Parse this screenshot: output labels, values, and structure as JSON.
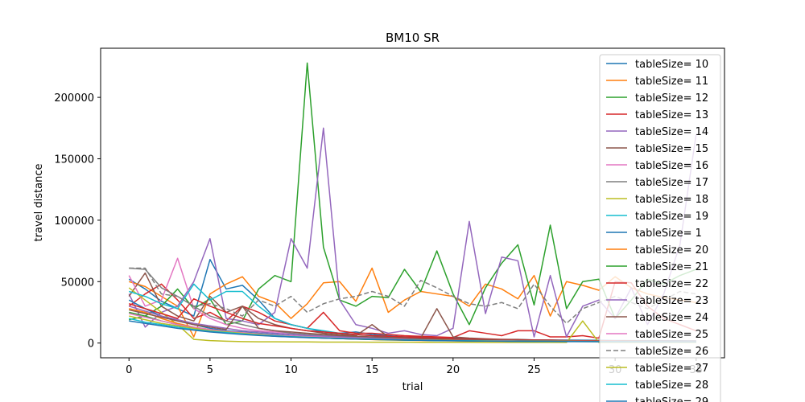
{
  "chart_data": {
    "type": "line",
    "title": "BM10  SR",
    "xlabel": "trial",
    "ylabel": "travel distance",
    "xlim": [
      -1.75,
      36.75
    ],
    "ylim": [
      -12000,
      240000
    ],
    "xticks": [
      0,
      5,
      10,
      15,
      20,
      25,
      30,
      35
    ],
    "yticks": [
      0,
      50000,
      100000,
      150000,
      200000
    ],
    "ytick_labels": [
      "0",
      "50000",
      "100000",
      "150000",
      "200000"
    ],
    "xtick_labels": [
      "0",
      "5",
      "10",
      "15",
      "20",
      "25",
      "30",
      "35"
    ],
    "grid": false,
    "legend_position": "top-right",
    "series": [
      {
        "name": "tableSize= 10",
        "color": "#1f77b4",
        "values": [
          52000,
          44000,
          34000,
          28000,
          22000,
          68000,
          44000,
          47000,
          35000,
          20000,
          15000,
          12000,
          9000,
          8000,
          9000,
          7000,
          6000,
          5000,
          5000,
          4000,
          4000,
          3500,
          3000,
          3000,
          2800,
          2600,
          2500,
          2400,
          2300,
          2200,
          2100,
          2000,
          2000,
          1900,
          1900,
          1800
        ]
      },
      {
        "name": "tableSize= 11",
        "color": "#ff7f0e",
        "values": [
          50000,
          46000,
          38000,
          30000,
          5000,
          40000,
          48000,
          54000,
          38000,
          33000,
          20000,
          32000,
          49000,
          50000,
          34000,
          61000,
          25000,
          35000,
          42000,
          40000,
          38000,
          30000,
          48000,
          44000,
          36000,
          55000,
          22000,
          50000,
          47000,
          43000,
          54000,
          45000,
          40000,
          37000,
          35000,
          33000
        ]
      },
      {
        "name": "tableSize= 12",
        "color": "#2ca02c",
        "values": [
          19000,
          22000,
          30000,
          44000,
          28000,
          36000,
          15000,
          18000,
          44000,
          55000,
          50000,
          228000,
          78000,
          35000,
          30000,
          38000,
          37000,
          60000,
          42000,
          75000,
          40000,
          15000,
          45000,
          65000,
          80000,
          31000,
          96000,
          28000,
          50000,
          52000,
          20000,
          35000,
          52000,
          48000,
          55000,
          60000
        ]
      },
      {
        "name": "tableSize= 13",
        "color": "#d62728",
        "values": [
          30000,
          40000,
          48000,
          35000,
          20000,
          25000,
          18000,
          30000,
          25000,
          18000,
          15000,
          12000,
          25000,
          10000,
          8000,
          8000,
          7000,
          6000,
          5500,
          5000,
          4500,
          10000,
          8000,
          6000,
          10000,
          10000,
          5000,
          5000,
          6000,
          4000,
          50000,
          49000,
          30000,
          20000,
          15000,
          10000
        ]
      },
      {
        "name": "tableSize= 14",
        "color": "#9467bd",
        "values": [
          40000,
          13000,
          25000,
          30000,
          50000,
          85000,
          20000,
          18000,
          15000,
          25000,
          85000,
          61000,
          175000,
          35000,
          15000,
          12000,
          8000,
          10000,
          7000,
          6000,
          12000,
          99000,
          24000,
          70000,
          67000,
          5000,
          55000,
          5000,
          30000,
          35000,
          20000,
          45000,
          15000,
          40000,
          80000,
          170000
        ]
      },
      {
        "name": "tableSize= 15",
        "color": "#8c564b",
        "values": [
          38000,
          57000,
          30000,
          22000,
          18000,
          38000,
          25000,
          30000,
          20000,
          15000,
          12000,
          10000,
          8000,
          7000,
          6000,
          15000,
          5000,
          4000,
          4000,
          28000,
          5000,
          4000,
          3500,
          3000,
          3000,
          2500,
          2500,
          2000,
          2000,
          2000,
          1800,
          1800,
          1600,
          1600,
          1500,
          1500
        ]
      },
      {
        "name": "tableSize= 16",
        "color": "#e377c2",
        "values": [
          55000,
          30000,
          35000,
          69000,
          28000,
          20000,
          15000,
          12000,
          10000,
          9000,
          8000,
          7000,
          6000,
          5000,
          5000,
          4000,
          4000,
          3500,
          3000,
          3000,
          2800,
          2600,
          2400,
          2200,
          2000,
          2000,
          1800,
          1800,
          1700,
          1600,
          1500,
          1500,
          1400,
          1400,
          1300,
          1300
        ]
      },
      {
        "name": "tableSize= 17",
        "color": "#7f7f7f",
        "values": [
          61000,
          60000,
          45000,
          38000,
          30000,
          22000,
          18000,
          15000,
          12000,
          10000,
          8000,
          7000,
          6000,
          5500,
          5000,
          4500,
          4000,
          3800,
          3500,
          3200,
          3000,
          2800,
          2600,
          2400,
          2200,
          2000,
          2000,
          1800,
          1800,
          1700,
          1600,
          1500,
          1500,
          1400,
          1400,
          1300
        ]
      },
      {
        "name": "tableSize= 18",
        "color": "#bcbd22",
        "values": [
          45000,
          35000,
          25000,
          15000,
          3000,
          2000,
          1500,
          1200,
          1000,
          1000,
          900,
          900,
          800,
          800,
          800,
          700,
          700,
          700,
          600,
          600,
          600,
          600,
          500,
          500,
          500,
          500,
          500,
          500,
          18000,
          500,
          500,
          500,
          500,
          500,
          500,
          500
        ]
      },
      {
        "name": "tableSize= 19",
        "color": "#17becf",
        "values": [
          42000,
          38000,
          32000,
          28000,
          48000,
          35000,
          42000,
          42000,
          30000,
          20000,
          15000,
          12000,
          10000,
          8000,
          7000,
          6000,
          5000,
          4500,
          4000,
          3500,
          3000,
          2800,
          2600,
          2400,
          2200,
          2000,
          1900,
          1800,
          1700,
          1600,
          1500,
          1500,
          1400,
          1400,
          1300,
          1300
        ]
      },
      {
        "name": "tableSize= 1",
        "color": "#1f77b4",
        "values": [
          35000,
          28000,
          22000,
          18000,
          15000,
          12000,
          10000,
          9000,
          8000,
          7000,
          6000,
          5000,
          4500,
          4000,
          3500,
          3000,
          2800,
          2600,
          2400,
          2200,
          2000,
          1900,
          1800,
          1700,
          1600,
          1500,
          1500,
          1400,
          1400,
          1300,
          1300,
          1200,
          1200,
          1100,
          1100,
          1000
        ]
      },
      {
        "name": "tableSize= 20",
        "color": "#ff7f0e",
        "values": [
          28000,
          25000,
          20000,
          16000,
          13000,
          11000,
          9000,
          8000,
          7000,
          6000,
          5000,
          4500,
          4000,
          3600,
          3200,
          2800,
          2500,
          2300,
          2100,
          1900,
          1800,
          1700,
          1600,
          1500,
          1400,
          1300,
          1300,
          1200,
          1200,
          1100,
          1100,
          1000,
          1000,
          900,
          900,
          900
        ]
      },
      {
        "name": "tableSize= 21",
        "color": "#2ca02c",
        "values": [
          25000,
          22000,
          18000,
          15000,
          12000,
          10000,
          8500,
          7500,
          6500,
          5500,
          5000,
          4500,
          4000,
          3600,
          3200,
          2900,
          2600,
          2400,
          2200,
          2000,
          1900,
          1800,
          1700,
          1600,
          1500,
          1400,
          1400,
          1300,
          1300,
          1200,
          1200,
          1100,
          1100,
          1000,
          1000,
          1000
        ]
      },
      {
        "name": "tableSize= 22",
        "color": "#d62728",
        "values": [
          32000,
          28000,
          24000,
          20000,
          36000,
          30000,
          25000,
          20000,
          16000,
          14000,
          12000,
          10000,
          9000,
          8000,
          7000,
          6000,
          5500,
          5000,
          4500,
          4000,
          3600,
          3300,
          3000,
          2800,
          2600,
          2400,
          2200,
          2000,
          1900,
          1800,
          1700,
          1600,
          1500,
          1500,
          1400,
          1400
        ]
      },
      {
        "name": "tableSize= 23",
        "color": "#9467bd",
        "values": [
          30000,
          26000,
          22000,
          19000,
          16000,
          14000,
          12000,
          10000,
          9000,
          8000,
          7000,
          6000,
          5500,
          5000,
          4500,
          4000,
          3600,
          3200,
          2900,
          2600,
          2400,
          2200,
          2000,
          1900,
          1800,
          1700,
          1600,
          1500,
          1400,
          1400,
          1300,
          1300,
          1200,
          1200,
          1100,
          1100
        ]
      },
      {
        "name": "tableSize= 24",
        "color": "#8c564b",
        "values": [
          27000,
          24000,
          21000,
          18000,
          15000,
          13000,
          11000,
          30000,
          12000,
          10000,
          9000,
          8000,
          7000,
          6000,
          5500,
          5000,
          4500,
          4000,
          3600,
          3300,
          3000,
          2800,
          2600,
          2400,
          2200,
          2000,
          1900,
          1800,
          1700,
          1600,
          1500,
          1400,
          1400,
          1300,
          1300,
          1200
        ]
      },
      {
        "name": "tableSize= 25",
        "color": "#e377c2",
        "values": [
          24000,
          21000,
          18000,
          15000,
          13000,
          11000,
          9500,
          8500,
          7500,
          6500,
          5800,
          5200,
          4700,
          4200,
          3800,
          3400,
          3100,
          2800,
          2500,
          2300,
          2100,
          2000,
          1900,
          1800,
          1700,
          1600,
          1500,
          1400,
          1400,
          1300,
          1300,
          1200,
          1200,
          1100,
          1100,
          1000
        ]
      },
      {
        "name": "tableSize= 26",
        "color": "#7f7f7f",
        "dashed": true,
        "values": [
          61000,
          61000,
          40000,
          38000,
          30000,
          32000,
          28000,
          22000,
          35000,
          30000,
          38000,
          25000,
          32000,
          36000,
          38000,
          42000,
          38000,
          30000,
          51000,
          45000,
          38000,
          32000,
          30000,
          33000,
          28000,
          48000,
          30000,
          16000,
          28000,
          33000,
          38000,
          33000,
          28000,
          35000,
          42000,
          40000
        ]
      },
      {
        "name": "tableSize= 27",
        "color": "#bcbd22",
        "values": [
          22000,
          19000,
          16000,
          14000,
          12000,
          10000,
          9000,
          8000,
          7000,
          6000,
          5300,
          4800,
          4300,
          3900,
          3500,
          3200,
          2900,
          2600,
          2400,
          2200,
          2000,
          1900,
          1800,
          1700,
          1600,
          1500,
          1400,
          1400,
          1300,
          1300,
          1200,
          1200,
          1100,
          1100,
          1000,
          1000
        ]
      },
      {
        "name": "tableSize= 28",
        "color": "#17becf",
        "values": [
          20000,
          17000,
          15000,
          13000,
          11000,
          9500,
          8500,
          7500,
          6500,
          5800,
          5200,
          4700,
          4200,
          3800,
          3400,
          3100,
          2800,
          2500,
          2300,
          2100,
          1900,
          1800,
          1700,
          1600,
          1500,
          1400,
          1300,
          1300,
          1200,
          1200,
          1100,
          1100,
          1000,
          1000,
          900,
          900
        ]
      },
      {
        "name": "tableSize= 29",
        "color": "#1f77b4",
        "values": [
          18000,
          16000,
          14000,
          12000,
          10500,
          9000,
          8000,
          7000,
          6200,
          5500,
          4900,
          4400,
          4000,
          3600,
          3300,
          3000,
          2700,
          2400,
          2200,
          2000,
          1800,
          1700,
          1600,
          1500,
          1400,
          1300,
          1300,
          1200,
          1200,
          1100,
          1100,
          1000,
          1000,
          900,
          900,
          900
        ]
      }
    ]
  }
}
